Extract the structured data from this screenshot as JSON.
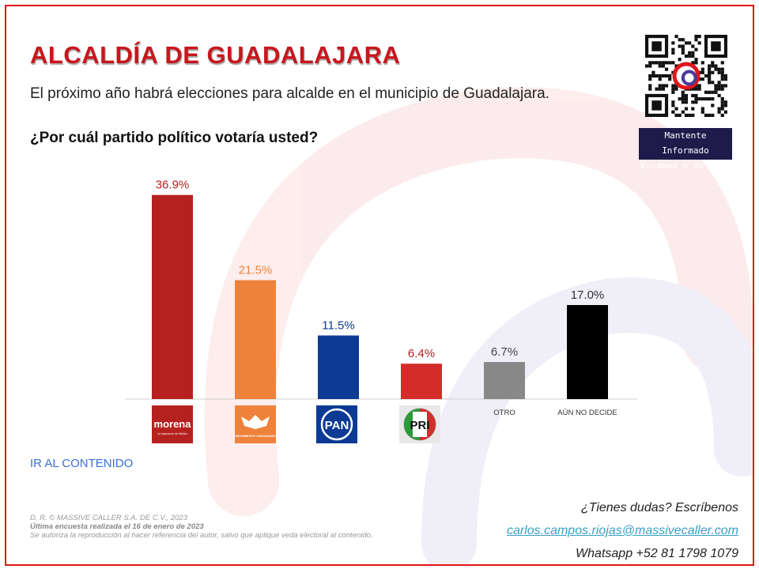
{
  "header": {
    "title": "ALCALDÍA DE GUADALAJARA",
    "subtitle": "El próximo año habrá elecciones para alcalde en el municipio de Guadalajara.",
    "question": "¿Por cuál partido político votaría usted?"
  },
  "qr": {
    "caption_line1": "Mantente Informado",
    "caption_line2": "Escanea o da Clic"
  },
  "chart_data": {
    "type": "bar",
    "categories": [
      "MORENA",
      "MOVIMIENTO CIUDADANO",
      "PAN",
      "PRI",
      "OTRO",
      "AÚN NO DECIDE"
    ],
    "values": [
      36.9,
      21.5,
      11.5,
      6.4,
      6.7,
      17.0
    ],
    "value_labels": [
      "36.9%",
      "21.5%",
      "11.5%",
      "6.4%",
      "6.7%",
      "17.0%"
    ],
    "colors": [
      "#b5211f",
      "#ee823a",
      "#0d3a94",
      "#d42b2b",
      "#888888",
      "#000000"
    ],
    "label_colors": [
      "#b5211f",
      "#ee823a",
      "#0d3a94",
      "#b5211f",
      "#444444",
      "#333333"
    ],
    "text_labels": [
      "",
      "",
      "",
      "",
      "OTRO",
      "AÚN NO DECIDE"
    ],
    "logo_labels": {
      "morena": "morena",
      "morena_tagline": "La esperanza de México",
      "mc": "MOVIMIENTO CIUDADANO",
      "pan": "PAN",
      "pri": "PRI"
    },
    "ylim": [
      0,
      40
    ],
    "grid": false
  },
  "footer": {
    "link": "IR AL CONTENIDO",
    "copyright": "D. R. © MASSIVE CALLER S.A. DE C.V., 2023",
    "note": "Última encuesta realizada el 16 de enero de 2023",
    "disclaimer": "Se autoriza la reproducción al hacer referencia del autor, salvo que aplique veda electoral al contenido.",
    "contact_prompt": "¿Tienes dudas? Escríbenos",
    "email": "carlos.campos.riojas@massivecaller.com",
    "whatsapp": "Whatsapp +52 81 1798 1079"
  }
}
